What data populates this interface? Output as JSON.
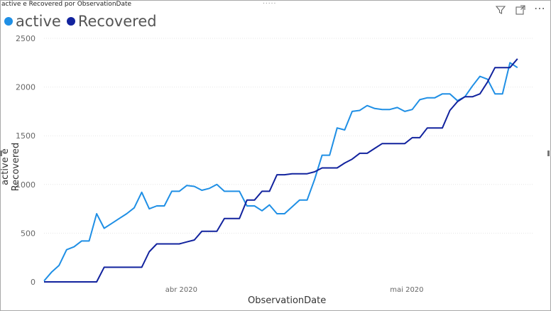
{
  "visual": {
    "title": "active e Recovered por ObservationDate",
    "more_dots": "....."
  },
  "toolbar": {
    "filter_icon": "filter-icon",
    "focus_icon": "focus-mode-icon",
    "more_icon": "more-options-icon",
    "more_label": "⋯"
  },
  "colors": {
    "active": "#1f8fe5",
    "recovered": "#12239e",
    "grid": "#e6e6e6"
  },
  "chart_data": {
    "type": "line",
    "title": "active e Recovered por ObservationDate",
    "xlabel": "ObservationDate",
    "ylabel": "active e Recovered",
    "ylim": [
      0,
      2500
    ],
    "yticks": [
      0,
      500,
      1000,
      1500,
      2000,
      2500
    ],
    "xticks": [
      {
        "label": "abr 2020",
        "date": "2020-04-01"
      },
      {
        "label": "mai 2020",
        "date": "2020-05-01"
      }
    ],
    "x_start": "2020-03-16",
    "x_end": "2020-05-20",
    "legend_position": "top-left",
    "grid": true,
    "series": [
      {
        "name": "active",
        "points": [
          [
            "2020-03-16",
            10
          ],
          [
            "2020-03-17",
            100
          ],
          [
            "2020-03-18",
            170
          ],
          [
            "2020-03-19",
            330
          ],
          [
            "2020-03-20",
            360
          ],
          [
            "2020-03-21",
            420
          ],
          [
            "2020-03-22",
            420
          ],
          [
            "2020-03-23",
            700
          ],
          [
            "2020-03-24",
            550
          ],
          [
            "2020-03-25",
            600
          ],
          [
            "2020-03-26",
            650
          ],
          [
            "2020-03-27",
            700
          ],
          [
            "2020-03-28",
            760
          ],
          [
            "2020-03-29",
            920
          ],
          [
            "2020-03-30",
            750
          ],
          [
            "2020-03-31",
            780
          ],
          [
            "2020-04-01",
            780
          ],
          [
            "2020-04-02",
            930
          ],
          [
            "2020-04-03",
            930
          ],
          [
            "2020-04-04",
            990
          ],
          [
            "2020-04-05",
            980
          ],
          [
            "2020-04-06",
            940
          ],
          [
            "2020-04-07",
            960
          ],
          [
            "2020-04-08",
            1000
          ],
          [
            "2020-04-09",
            930
          ],
          [
            "2020-04-10",
            930
          ],
          [
            "2020-04-11",
            930
          ],
          [
            "2020-04-12",
            780
          ],
          [
            "2020-04-13",
            780
          ],
          [
            "2020-04-14",
            730
          ],
          [
            "2020-04-15",
            790
          ],
          [
            "2020-04-16",
            700
          ],
          [
            "2020-04-17",
            700
          ],
          [
            "2020-04-18",
            770
          ],
          [
            "2020-04-19",
            840
          ],
          [
            "2020-04-20",
            840
          ],
          [
            "2020-04-21",
            1050
          ],
          [
            "2020-04-22",
            1300
          ],
          [
            "2020-04-23",
            1300
          ],
          [
            "2020-04-24",
            1580
          ],
          [
            "2020-04-25",
            1560
          ],
          [
            "2020-04-26",
            1750
          ],
          [
            "2020-04-27",
            1760
          ],
          [
            "2020-04-28",
            1810
          ],
          [
            "2020-04-29",
            1780
          ],
          [
            "2020-04-30",
            1770
          ],
          [
            "2020-05-01",
            1770
          ],
          [
            "2020-05-02",
            1790
          ],
          [
            "2020-05-03",
            1750
          ],
          [
            "2020-05-04",
            1770
          ],
          [
            "2020-05-05",
            1870
          ],
          [
            "2020-05-06",
            1890
          ],
          [
            "2020-05-07",
            1890
          ],
          [
            "2020-05-08",
            1930
          ],
          [
            "2020-05-09",
            1930
          ],
          [
            "2020-05-10",
            1860
          ],
          [
            "2020-05-11",
            1900
          ],
          [
            "2020-05-12",
            2010
          ],
          [
            "2020-05-13",
            2110
          ],
          [
            "2020-05-14",
            2080
          ],
          [
            "2020-05-15",
            1930
          ],
          [
            "2020-05-16",
            1930
          ],
          [
            "2020-05-17",
            2250
          ],
          [
            "2020-05-18",
            2200
          ]
        ]
      },
      {
        "name": "Recovered",
        "points": [
          [
            "2020-03-16",
            0
          ],
          [
            "2020-03-23",
            0
          ],
          [
            "2020-03-24",
            150
          ],
          [
            "2020-03-25",
            150
          ],
          [
            "2020-03-26",
            150
          ],
          [
            "2020-03-27",
            150
          ],
          [
            "2020-03-28",
            150
          ],
          [
            "2020-03-29",
            150
          ],
          [
            "2020-03-30",
            310
          ],
          [
            "2020-03-31",
            390
          ],
          [
            "2020-04-01",
            390
          ],
          [
            "2020-04-02",
            390
          ],
          [
            "2020-04-03",
            390
          ],
          [
            "2020-04-04",
            410
          ],
          [
            "2020-04-05",
            430
          ],
          [
            "2020-04-06",
            520
          ],
          [
            "2020-04-07",
            520
          ],
          [
            "2020-04-08",
            520
          ],
          [
            "2020-04-09",
            650
          ],
          [
            "2020-04-10",
            650
          ],
          [
            "2020-04-11",
            650
          ],
          [
            "2020-04-12",
            840
          ],
          [
            "2020-04-13",
            840
          ],
          [
            "2020-04-14",
            930
          ],
          [
            "2020-04-15",
            930
          ],
          [
            "2020-04-16",
            1100
          ],
          [
            "2020-04-17",
            1100
          ],
          [
            "2020-04-18",
            1110
          ],
          [
            "2020-04-19",
            1110
          ],
          [
            "2020-04-20",
            1110
          ],
          [
            "2020-04-21",
            1130
          ],
          [
            "2020-04-22",
            1170
          ],
          [
            "2020-04-23",
            1170
          ],
          [
            "2020-04-24",
            1170
          ],
          [
            "2020-04-25",
            1220
          ],
          [
            "2020-04-26",
            1260
          ],
          [
            "2020-04-27",
            1320
          ],
          [
            "2020-04-28",
            1320
          ],
          [
            "2020-04-29",
            1370
          ],
          [
            "2020-04-30",
            1420
          ],
          [
            "2020-05-01",
            1420
          ],
          [
            "2020-05-02",
            1420
          ],
          [
            "2020-05-03",
            1420
          ],
          [
            "2020-05-04",
            1480
          ],
          [
            "2020-05-05",
            1480
          ],
          [
            "2020-05-06",
            1580
          ],
          [
            "2020-05-07",
            1580
          ],
          [
            "2020-05-08",
            1580
          ],
          [
            "2020-05-09",
            1760
          ],
          [
            "2020-05-10",
            1850
          ],
          [
            "2020-05-11",
            1900
          ],
          [
            "2020-05-12",
            1900
          ],
          [
            "2020-05-13",
            1930
          ],
          [
            "2020-05-14",
            2050
          ],
          [
            "2020-05-15",
            2200
          ],
          [
            "2020-05-16",
            2200
          ],
          [
            "2020-05-17",
            2200
          ],
          [
            "2020-05-18",
            2290
          ]
        ]
      }
    ]
  }
}
